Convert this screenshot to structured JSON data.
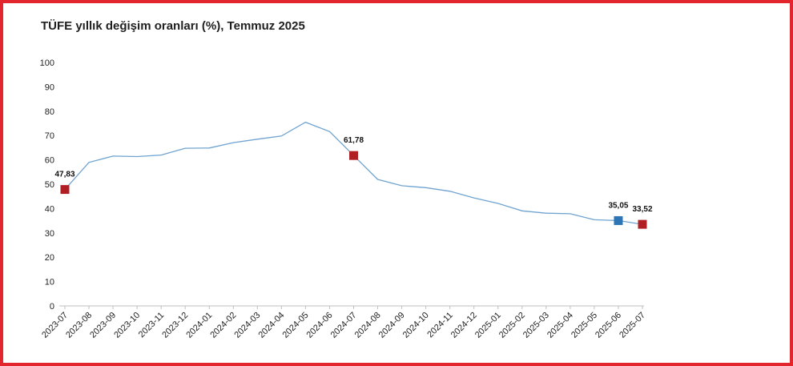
{
  "title": "TÜFE yıllık değişim oranları (%), Temmuz 2025",
  "chart_data": {
    "type": "line",
    "title": "TÜFE yıllık değişim oranları (%), Temmuz 2025",
    "xlabel": "",
    "ylabel": "",
    "ylim": [
      0,
      100
    ],
    "yticks": [
      0,
      10,
      20,
      30,
      40,
      50,
      60,
      70,
      80,
      90,
      100
    ],
    "grid": false,
    "legend": "none",
    "categories": [
      "2023-07",
      "2023-08",
      "2023-09",
      "2023-10",
      "2023-11",
      "2023-12",
      "2024-01",
      "2024-02",
      "2024-03",
      "2024-04",
      "2024-05",
      "2024-06",
      "2024-07",
      "2024-08",
      "2024-09",
      "2024-10",
      "2024-11",
      "2024-12",
      "2025-01",
      "2025-02",
      "2025-03",
      "2025-04",
      "2025-05",
      "2025-06",
      "2025-07"
    ],
    "series": [
      {
        "values": [
          47.83,
          58.94,
          61.53,
          61.36,
          61.98,
          64.77,
          64.86,
          67.07,
          68.5,
          69.8,
          75.45,
          71.6,
          61.78,
          51.97,
          49.38,
          48.58,
          47.09,
          44.38,
          42.12,
          39.05,
          38.1,
          37.86,
          35.41,
          35.05,
          33.52
        ],
        "color": "#6fa3d0"
      }
    ],
    "markers": [
      {
        "index": 0,
        "label": "47,83",
        "color": "#b01f24"
      },
      {
        "index": 12,
        "label": "61,78",
        "color": "#b01f24"
      },
      {
        "index": 23,
        "label": "35,05",
        "color": "#2e75b6"
      },
      {
        "index": 24,
        "label": "33,52",
        "color": "#b01f24"
      }
    ],
    "axis_color": "#bfbfbf"
  }
}
